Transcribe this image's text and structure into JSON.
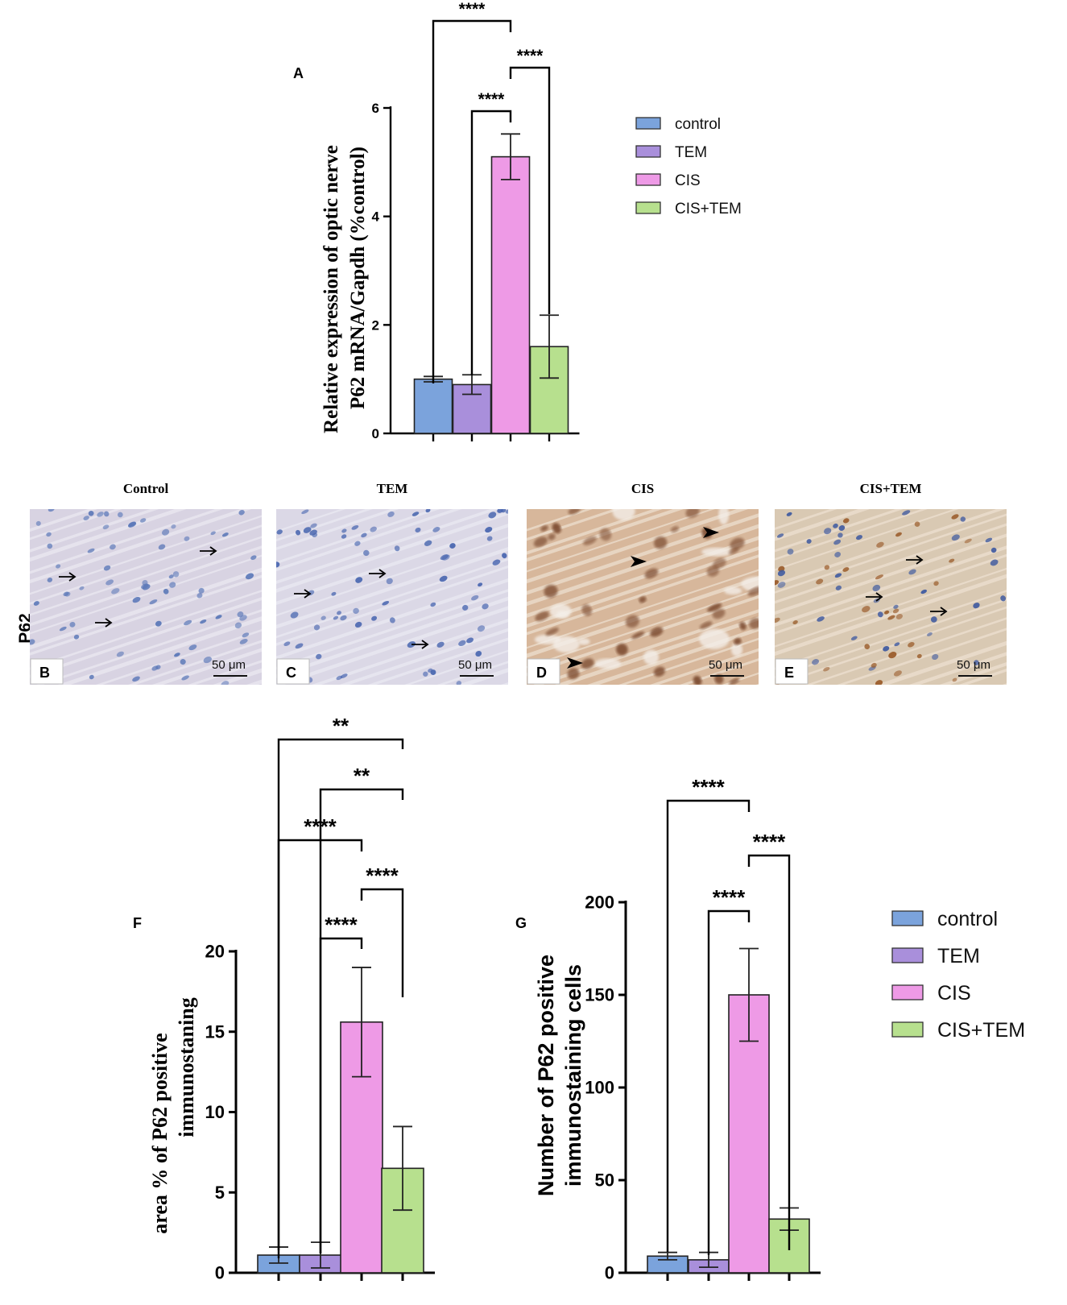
{
  "colors": {
    "control": "#7ba3dc",
    "TEM": "#a98fdb",
    "CIS": "#ee9ae6",
    "CIS+TEM": "#b7e08e",
    "axis": "#000000"
  },
  "chart_data": [
    {
      "id": "A",
      "type": "bar",
      "label": "A",
      "ylabel_lines": [
        "Relative expression of optic nerve",
        "P62 mRNA/Gapdh (%control)"
      ],
      "categories": [
        "control",
        "TEM",
        "CIS",
        "CIS+TEM"
      ],
      "values": [
        1.0,
        0.9,
        5.1,
        1.6
      ],
      "errors": [
        0.05,
        0.18,
        0.42,
        0.58
      ],
      "ylim": [
        0,
        6
      ],
      "yticks": [
        0,
        2,
        4,
        6
      ],
      "legend": [
        "control",
        "TEM",
        "CIS",
        "CIS+TEM"
      ],
      "significance": [
        {
          "from": 0,
          "to": 2,
          "label": "****"
        },
        {
          "from": 3,
          "to": 2,
          "label": "****"
        },
        {
          "from": 1,
          "to": 2,
          "label": "****"
        }
      ]
    },
    {
      "id": "F",
      "type": "bar",
      "label": "F",
      "ylabel_lines": [
        "area % of P62 positive",
        "immunostaning"
      ],
      "categories": [
        "control",
        "TEM",
        "CIS",
        "CIS+TEM"
      ],
      "values": [
        1.1,
        1.1,
        15.6,
        6.5
      ],
      "errors": [
        0.5,
        0.8,
        3.4,
        2.6
      ],
      "ylim": [
        0,
        20
      ],
      "yticks": [
        0,
        5,
        10,
        15,
        20
      ],
      "significance": [
        {
          "from": 0,
          "to": 3,
          "label": "**"
        },
        {
          "from": 1,
          "to": 3,
          "label": "**"
        },
        {
          "from": 0,
          "to": 2,
          "label": "****"
        },
        {
          "from": 3,
          "to": 2,
          "label": "****"
        },
        {
          "from": 1,
          "to": 2,
          "label": "****"
        }
      ]
    },
    {
      "id": "G",
      "type": "bar",
      "label": "G",
      "ylabel_lines": [
        "Number of P62 positive",
        "immunostaining cells"
      ],
      "categories": [
        "control",
        "TEM",
        "CIS",
        "CIS+TEM"
      ],
      "values": [
        9,
        7,
        150,
        29
      ],
      "errors": [
        2,
        4,
        25,
        6
      ],
      "ylim": [
        0,
        200
      ],
      "yticks": [
        0,
        50,
        100,
        150,
        200
      ],
      "legend": [
        "control",
        "TEM",
        "CIS",
        "CIS+TEM"
      ],
      "significance": [
        {
          "from": 0,
          "to": 2,
          "label": "****"
        },
        {
          "from": 3,
          "to": 2,
          "label": "****"
        },
        {
          "from": 1,
          "to": 2,
          "label": "****"
        }
      ]
    }
  ],
  "micrographs": {
    "row_label": "P62",
    "panels": [
      {
        "letter": "B",
        "title": "Control",
        "scale": "50 μm"
      },
      {
        "letter": "C",
        "title": "TEM",
        "scale": "50 μm"
      },
      {
        "letter": "D",
        "title": "CIS",
        "scale": "50 μm"
      },
      {
        "letter": "E",
        "title": "CIS+TEM",
        "scale": "50 μm"
      }
    ]
  }
}
